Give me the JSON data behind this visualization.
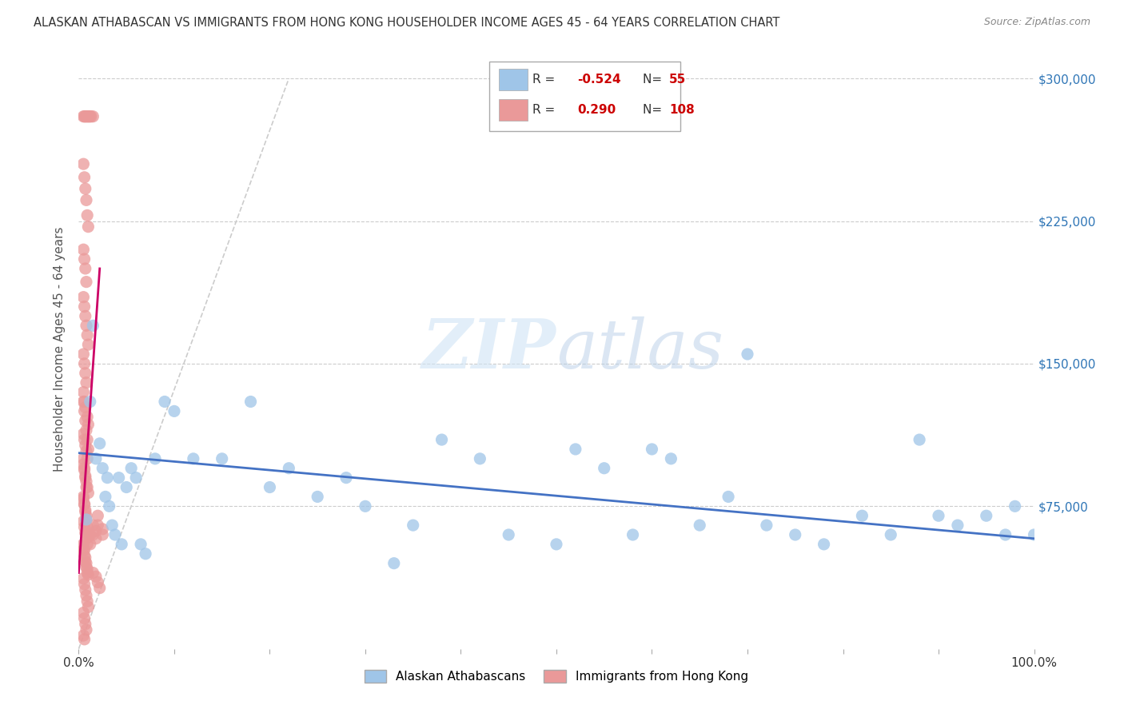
{
  "title": "ALASKAN ATHABASCAN VS IMMIGRANTS FROM HONG KONG HOUSEHOLDER INCOME AGES 45 - 64 YEARS CORRELATION CHART",
  "source": "Source: ZipAtlas.com",
  "ylabel": "Householder Income Ages 45 - 64 years",
  "xlim": [
    0,
    1.0
  ],
  "ylim": [
    0,
    315000
  ],
  "ytick_positions": [
    0,
    75000,
    150000,
    225000,
    300000
  ],
  "ytick_labels": [
    "",
    "$75,000",
    "$150,000",
    "$225,000",
    "$300,000"
  ],
  "background_color": "#ffffff",
  "watermark": "ZIPatlas",
  "blue_color": "#9fc5e8",
  "pink_color": "#ea9999",
  "blue_line_color": "#4472c4",
  "pink_line_color": "#cc0066",
  "grid_color": "#cccccc",
  "blue_scatter_x": [
    0.008,
    0.012,
    0.018,
    0.022,
    0.025,
    0.028,
    0.03,
    0.032,
    0.035,
    0.038,
    0.042,
    0.045,
    0.05,
    0.055,
    0.06,
    0.065,
    0.07,
    0.08,
    0.09,
    0.1,
    0.12,
    0.15,
    0.18,
    0.2,
    0.22,
    0.25,
    0.28,
    0.3,
    0.33,
    0.35,
    0.38,
    0.42,
    0.45,
    0.5,
    0.52,
    0.55,
    0.58,
    0.6,
    0.62,
    0.65,
    0.68,
    0.7,
    0.72,
    0.75,
    0.78,
    0.82,
    0.85,
    0.88,
    0.9,
    0.92,
    0.95,
    0.97,
    0.98,
    1.0,
    0.015
  ],
  "blue_scatter_y": [
    68000,
    130000,
    100000,
    108000,
    95000,
    80000,
    90000,
    75000,
    65000,
    60000,
    90000,
    55000,
    85000,
    95000,
    90000,
    55000,
    50000,
    100000,
    130000,
    125000,
    100000,
    100000,
    130000,
    85000,
    95000,
    80000,
    90000,
    75000,
    45000,
    65000,
    110000,
    100000,
    60000,
    55000,
    105000,
    95000,
    60000,
    105000,
    100000,
    65000,
    80000,
    155000,
    65000,
    60000,
    55000,
    70000,
    60000,
    110000,
    70000,
    65000,
    70000,
    60000,
    75000,
    60000,
    170000
  ],
  "pink_scatter_x": [
    0.005,
    0.006,
    0.007,
    0.008,
    0.009,
    0.01,
    0.011,
    0.012,
    0.013,
    0.015,
    0.005,
    0.006,
    0.007,
    0.008,
    0.009,
    0.01,
    0.005,
    0.006,
    0.007,
    0.008,
    0.005,
    0.006,
    0.007,
    0.008,
    0.009,
    0.01,
    0.005,
    0.006,
    0.007,
    0.008,
    0.005,
    0.006,
    0.007,
    0.009,
    0.01,
    0.005,
    0.006,
    0.007,
    0.008,
    0.009,
    0.005,
    0.006,
    0.007,
    0.008,
    0.009,
    0.01,
    0.005,
    0.006,
    0.007,
    0.008,
    0.005,
    0.006,
    0.007,
    0.008,
    0.009,
    0.005,
    0.006,
    0.007,
    0.008,
    0.009,
    0.005,
    0.006,
    0.007,
    0.008,
    0.009,
    0.01,
    0.005,
    0.006,
    0.007,
    0.008,
    0.005,
    0.006,
    0.007,
    0.008,
    0.009,
    0.01,
    0.005,
    0.006,
    0.007,
    0.008,
    0.005,
    0.006,
    0.007,
    0.008,
    0.009,
    0.01,
    0.012,
    0.015,
    0.018,
    0.02,
    0.005,
    0.006,
    0.007,
    0.008,
    0.009,
    0.01,
    0.012,
    0.015,
    0.018,
    0.02,
    0.005,
    0.006,
    0.015,
    0.018,
    0.02,
    0.022,
    0.025,
    0.025
  ],
  "pink_scatter_y": [
    280000,
    280000,
    280000,
    280000,
    280000,
    280000,
    280000,
    280000,
    280000,
    280000,
    255000,
    248000,
    242000,
    236000,
    228000,
    222000,
    210000,
    205000,
    200000,
    193000,
    185000,
    180000,
    175000,
    170000,
    165000,
    160000,
    155000,
    150000,
    145000,
    140000,
    135000,
    130000,
    127000,
    122000,
    118000,
    113000,
    110000,
    107000,
    104000,
    100000,
    97000,
    94000,
    91000,
    88000,
    85000,
    82000,
    79000,
    76000,
    73000,
    70000,
    67000,
    64000,
    61000,
    58000,
    55000,
    52000,
    49000,
    46000,
    43000,
    40000,
    37000,
    34000,
    31000,
    28000,
    25000,
    22000,
    19000,
    16000,
    13000,
    10000,
    130000,
    125000,
    120000,
    115000,
    110000,
    105000,
    100000,
    95000,
    90000,
    85000,
    80000,
    76000,
    72000,
    68000,
    64000,
    60000,
    60000,
    65000,
    62000,
    70000,
    55000,
    52000,
    48000,
    45000,
    42000,
    39000,
    55000,
    60000,
    58000,
    65000,
    7000,
    5000,
    40000,
    38000,
    35000,
    32000,
    63000,
    60000
  ],
  "blue_line_x": [
    0.0,
    1.0
  ],
  "blue_line_y": [
    103000,
    58000
  ],
  "pink_line_x": [
    0.0,
    0.022
  ],
  "pink_line_y": [
    40000,
    200000
  ],
  "diag_line_x": [
    0.0,
    0.22
  ],
  "diag_line_y": [
    0,
    300000
  ]
}
